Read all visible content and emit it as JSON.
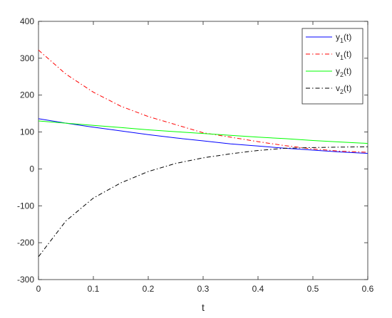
{
  "chart_data": {
    "type": "line",
    "title": "",
    "xlabel": "t",
    "ylabel": "",
    "xlim": [
      0,
      0.6
    ],
    "ylim": [
      -300,
      400
    ],
    "xticks": [
      0,
      0.1,
      0.2,
      0.3,
      0.4,
      0.5,
      0.6
    ],
    "yticks": [
      -300,
      -200,
      -100,
      0,
      100,
      200,
      300,
      400
    ],
    "xtick_labels": [
      "0",
      "0.1",
      "0.2",
      "0.3",
      "0.4",
      "0.5",
      "0.6"
    ],
    "ytick_labels": [
      "-300",
      "-200",
      "-100",
      "0",
      "100",
      "200",
      "300",
      "400"
    ],
    "grid": false,
    "legend_position": "top-right",
    "x": [
      0,
      0.05,
      0.1,
      0.15,
      0.2,
      0.25,
      0.3,
      0.35,
      0.4,
      0.45,
      0.5,
      0.55,
      0.6
    ],
    "series": [
      {
        "name": "y1(t)",
        "label_main": "y",
        "label_sub": "1",
        "label_tail": "(t)",
        "color": "#0000ff",
        "dash": "solid",
        "values": [
          136,
          124,
          113,
          103,
          93,
          84,
          76,
          68,
          62,
          56,
          51,
          46,
          42
        ]
      },
      {
        "name": "v1(t)",
        "label_main": "v",
        "label_sub": "1",
        "label_tail": "(t)",
        "color": "#ff0000",
        "dash": "dash-dot",
        "values": [
          322,
          257,
          208,
          170,
          142,
          120,
          98,
          86,
          74,
          63,
          54,
          48,
          45
        ]
      },
      {
        "name": "y2(t)",
        "label_main": "y",
        "label_sub": "2",
        "label_tail": "(t)",
        "color": "#00ff00",
        "dash": "solid",
        "values": [
          130,
          124,
          118,
          112,
          106,
          101,
          96,
          91,
          86,
          82,
          77,
          73,
          69
        ]
      },
      {
        "name": "v2(t)",
        "label_main": "v",
        "label_sub": "2",
        "label_tail": "(t)",
        "color": "#000000",
        "dash": "dash-dot",
        "values": [
          -238,
          -141,
          -79,
          -38,
          -7,
          15,
          30,
          41,
          50,
          56,
          58,
          59,
          60
        ]
      }
    ]
  }
}
